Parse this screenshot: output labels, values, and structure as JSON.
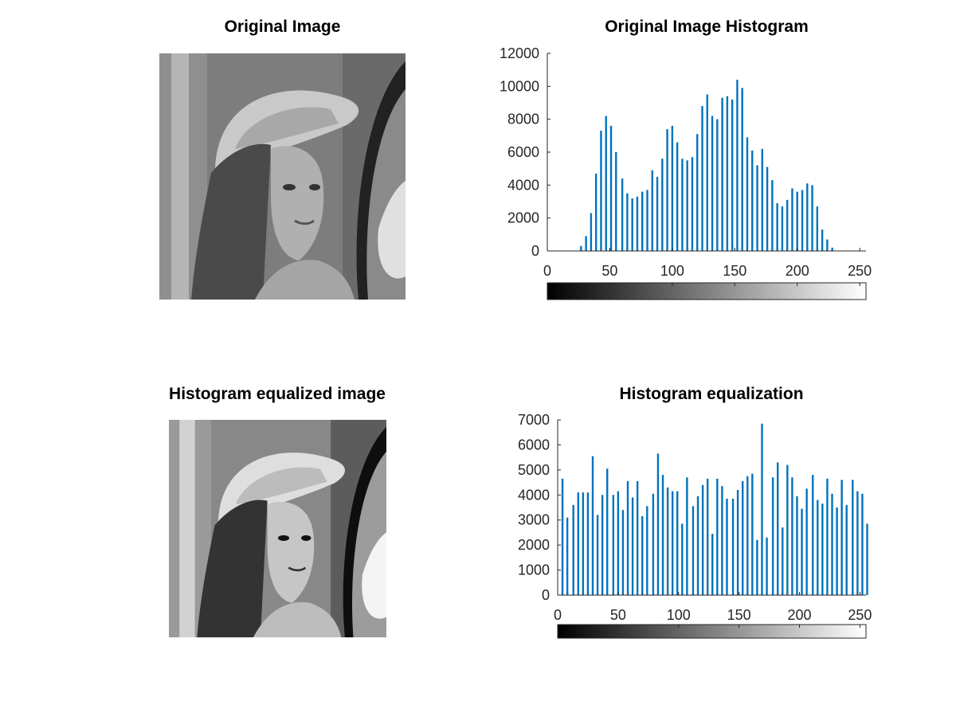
{
  "images": {
    "original_title": "Original Image",
    "equalized_title": "Histogram equalized image"
  },
  "chart_data": [
    {
      "type": "bar",
      "title": "Original Image Histogram",
      "xlabel": "",
      "ylabel": "",
      "xlim": [
        0,
        255
      ],
      "ylim": [
        0,
        12000
      ],
      "xticks": [
        0,
        50,
        100,
        150,
        200,
        250
      ],
      "yticks": [
        0,
        2000,
        4000,
        6000,
        8000,
        10000,
        12000
      ],
      "colorbar": "gray",
      "bar_color": "#0072bd",
      "x": [
        27,
        31,
        35,
        39,
        43,
        47,
        51,
        55,
        60,
        64,
        68,
        72,
        76,
        80,
        84,
        88,
        92,
        96,
        100,
        104,
        108,
        112,
        116,
        120,
        124,
        128,
        132,
        136,
        140,
        144,
        148,
        152,
        156,
        160,
        164,
        168,
        172,
        176,
        180,
        184,
        188,
        192,
        196,
        200,
        204,
        208,
        212,
        216,
        220,
        224,
        228
      ],
      "values": [
        300,
        900,
        2300,
        4700,
        7300,
        8200,
        7600,
        6000,
        4400,
        3500,
        3200,
        3300,
        3600,
        3700,
        4900,
        4500,
        5600,
        7400,
        7600,
        6600,
        5600,
        5500,
        5700,
        7100,
        8800,
        9500,
        8200,
        8000,
        9300,
        9400,
        9200,
        10400,
        9900,
        6900,
        6100,
        5200,
        6200,
        5100,
        4300,
        2900,
        2700,
        3100,
        3800,
        3600,
        3700,
        4100,
        4000,
        2700,
        1300,
        700,
        200
      ]
    },
    {
      "type": "bar",
      "title": "Histogram equalization",
      "xlabel": "",
      "ylabel": "",
      "xlim": [
        0,
        255
      ],
      "ylim": [
        0,
        7000
      ],
      "xticks": [
        0,
        50,
        100,
        150,
        200,
        250
      ],
      "yticks": [
        0,
        1000,
        2000,
        3000,
        4000,
        5000,
        6000,
        7000
      ],
      "colorbar": "gray",
      "bar_color": "#0072bd",
      "x": [
        4,
        8,
        13,
        17,
        21,
        25,
        29,
        33,
        37,
        41,
        46,
        50,
        54,
        58,
        62,
        66,
        70,
        74,
        79,
        83,
        87,
        91,
        95,
        99,
        103,
        107,
        112,
        116,
        120,
        124,
        128,
        132,
        136,
        140,
        145,
        149,
        153,
        157,
        161,
        165,
        169,
        173,
        178,
        182,
        186,
        190,
        194,
        198,
        202,
        206,
        211,
        215,
        219,
        223,
        227,
        231,
        235,
        239,
        244,
        248,
        252,
        256
      ],
      "values": [
        4650,
        3100,
        3600,
        4100,
        4100,
        4100,
        5550,
        3200,
        4000,
        5050,
        4000,
        4150,
        3400,
        4550,
        3900,
        4550,
        3150,
        3550,
        4050,
        5650,
        4800,
        4300,
        4150,
        4150,
        2850,
        4700,
        3550,
        3950,
        4400,
        4650,
        2450,
        4650,
        4350,
        3850,
        3850,
        4200,
        4550,
        4750,
        4850,
        2200,
        6850,
        2300,
        4700,
        5300,
        2700,
        5200,
        4700,
        3950,
        3450,
        4250,
        4800,
        3800,
        3650,
        4650,
        4050,
        3500,
        4600,
        3600,
        4600,
        4150,
        4050,
        2850
      ]
    }
  ]
}
